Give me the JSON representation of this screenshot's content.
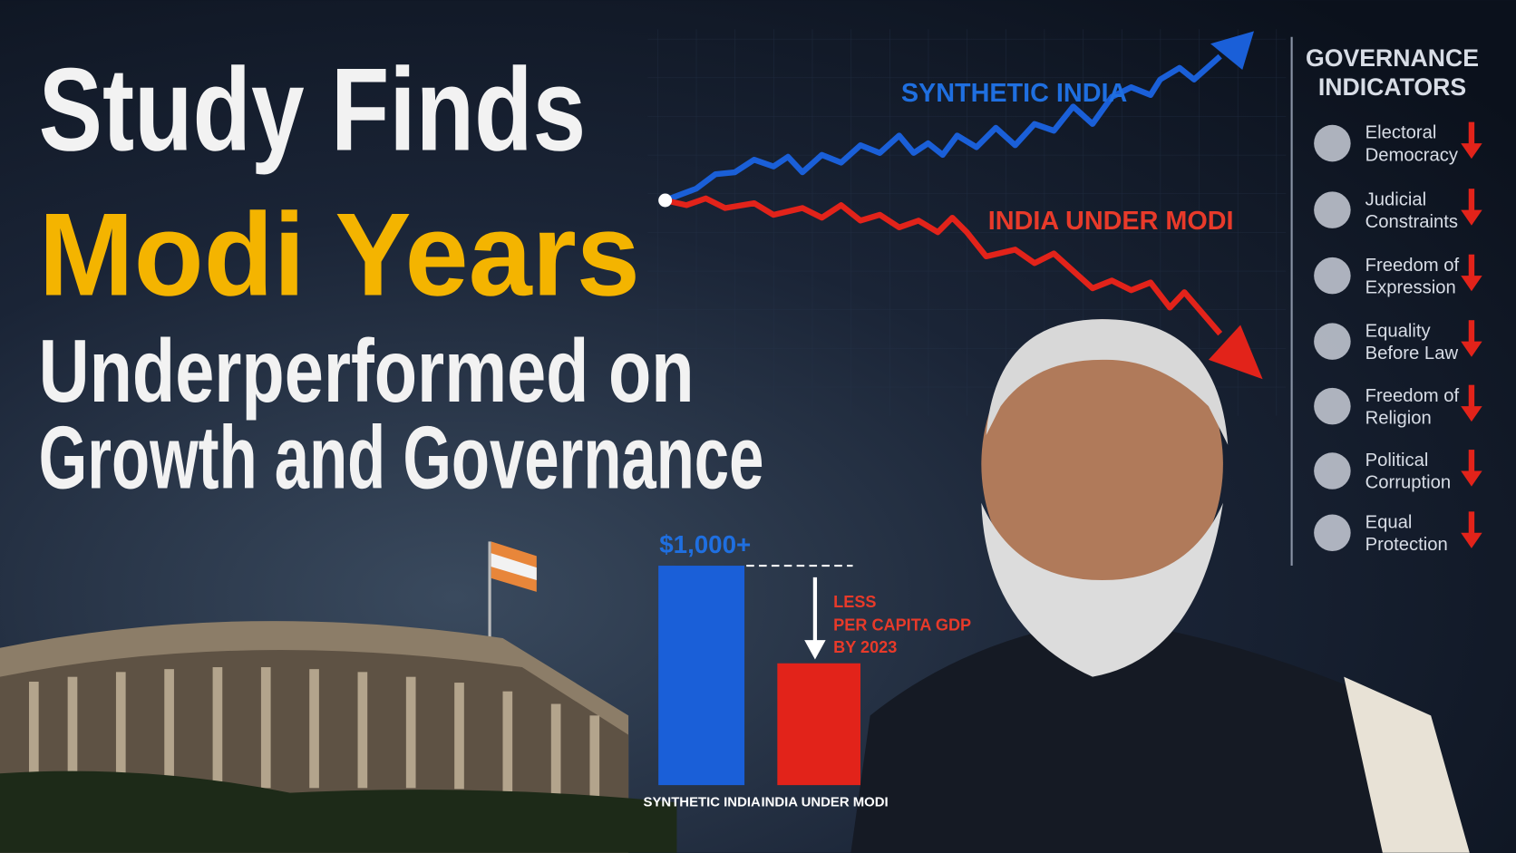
{
  "headline": {
    "line1": "Study Finds",
    "line2": "Modi Years",
    "line3": "Underperformed on",
    "line4": "Growth and Governance"
  },
  "trend_chart": {
    "series": [
      {
        "label": "SYNTHETIC INDIA"
      },
      {
        "label": "INDIA UNDER MODI"
      }
    ]
  },
  "gdp_comparison": {
    "gap_label": "$1,000+",
    "note": [
      "LESS",
      "PER CAPITA GDP",
      "BY 2023"
    ],
    "bars": [
      "SYNTHETIC INDIA",
      "INDIA UNDER MODI"
    ]
  },
  "indicators": {
    "title": [
      "GOVERNANCE",
      "INDICATORS"
    ],
    "items": [
      [
        "Electoral",
        "Democracy"
      ],
      [
        "Judicial",
        "Constraints"
      ],
      [
        "Freedom of",
        "Expression"
      ],
      [
        "Equality",
        "Before Law"
      ],
      [
        "Freedom of",
        "Religion"
      ],
      [
        "Political",
        "Corruption"
      ],
      [
        "Equal",
        "Protection"
      ]
    ]
  }
}
